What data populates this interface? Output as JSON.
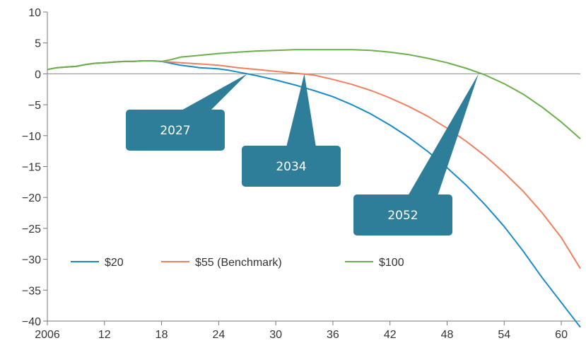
{
  "chart_data": {
    "type": "line",
    "title": "",
    "xlabel": "",
    "ylabel": "",
    "xlim": [
      2006,
      2062
    ],
    "ylim": [
      -40,
      10
    ],
    "x_ticks": [
      2006,
      2012,
      2018,
      2024,
      2030,
      2036,
      2042,
      2048,
      2054,
      2060
    ],
    "x_tick_labels": [
      "2006",
      "12",
      "18",
      "24",
      "30",
      "36",
      "42",
      "48",
      "54",
      "60"
    ],
    "y_ticks": [
      10,
      5,
      0,
      -5,
      -10,
      -15,
      -20,
      -25,
      -30,
      -35,
      -40
    ],
    "y_tick_labels": [
      "10",
      "5",
      "0",
      "−5",
      "−10",
      "−15",
      "−20",
      "−25",
      "−30",
      "−35",
      "−40"
    ],
    "grid": false,
    "zero_line": true,
    "legend_position": "lower-left",
    "series": [
      {
        "name": "$20",
        "color": "#1a8bc9",
        "x": [
          2006,
          2007,
          2008,
          2009,
          2010,
          2011,
          2012,
          2013,
          2014,
          2015,
          2016,
          2017,
          2018,
          2019,
          2020,
          2021,
          2022,
          2023,
          2024,
          2025,
          2026,
          2027,
          2028,
          2030,
          2032,
          2034,
          2036,
          2038,
          2040,
          2042,
          2044,
          2046,
          2048,
          2050,
          2052,
          2054,
          2056,
          2058,
          2060,
          2062
        ],
        "y": [
          0.7,
          1.0,
          1.1,
          1.2,
          1.5,
          1.7,
          1.8,
          1.9,
          2.0,
          2.0,
          2.1,
          2.1,
          2.0,
          1.7,
          1.4,
          1.2,
          1.0,
          0.9,
          0.8,
          0.6,
          0.3,
          0.0,
          -0.3,
          -1.0,
          -1.8,
          -2.7,
          -3.7,
          -5.0,
          -6.5,
          -8.3,
          -10.3,
          -12.6,
          -15.2,
          -18.0,
          -21.2,
          -24.7,
          -28.7,
          -33.0,
          -37.0,
          -41.0
        ]
      },
      {
        "name": "$55 (Benchmark)",
        "color": "#f08060",
        "x": [
          2006,
          2007,
          2008,
          2009,
          2010,
          2011,
          2012,
          2013,
          2014,
          2015,
          2016,
          2017,
          2018,
          2019,
          2020,
          2022,
          2024,
          2026,
          2028,
          2030,
          2032,
          2034,
          2036,
          2038,
          2040,
          2042,
          2044,
          2046,
          2048,
          2050,
          2052,
          2054,
          2056,
          2058,
          2060,
          2062
        ],
        "y": [
          0.7,
          1.0,
          1.1,
          1.2,
          1.5,
          1.7,
          1.8,
          1.9,
          2.0,
          2.0,
          2.1,
          2.1,
          2.0,
          1.9,
          1.8,
          1.6,
          1.4,
          1.0,
          0.7,
          0.4,
          0.1,
          -0.2,
          -0.9,
          -1.7,
          -2.7,
          -3.9,
          -5.3,
          -6.9,
          -8.8,
          -10.9,
          -13.3,
          -16.0,
          -19.0,
          -22.5,
          -26.5,
          -31.5
        ]
      },
      {
        "name": "$100",
        "color": "#6ab04c",
        "x": [
          2006,
          2007,
          2008,
          2009,
          2010,
          2011,
          2012,
          2013,
          2014,
          2015,
          2016,
          2017,
          2018,
          2019,
          2020,
          2022,
          2024,
          2026,
          2028,
          2030,
          2032,
          2034,
          2036,
          2038,
          2040,
          2042,
          2044,
          2046,
          2048,
          2050,
          2052,
          2054,
          2056,
          2058,
          2060,
          2062
        ],
        "y": [
          0.7,
          1.0,
          1.1,
          1.2,
          1.5,
          1.7,
          1.8,
          1.9,
          2.0,
          2.0,
          2.1,
          2.1,
          2.0,
          2.3,
          2.7,
          3.0,
          3.3,
          3.5,
          3.7,
          3.8,
          3.9,
          3.9,
          3.9,
          3.9,
          3.8,
          3.5,
          3.1,
          2.5,
          1.8,
          0.9,
          -0.2,
          -1.6,
          -3.3,
          -5.4,
          -7.8,
          -10.5
        ]
      }
    ],
    "annotations": [
      {
        "label": "2027",
        "target_x": 2027.0,
        "target_y": 0
      },
      {
        "label": "2034",
        "target_x": 2033.0,
        "target_y": 0
      },
      {
        "label": "2052",
        "target_x": 2051.3,
        "target_y": 0
      }
    ],
    "colors": {
      "callout": "#2e7d99",
      "axis": "#777777",
      "zero_line": "#888888"
    }
  }
}
